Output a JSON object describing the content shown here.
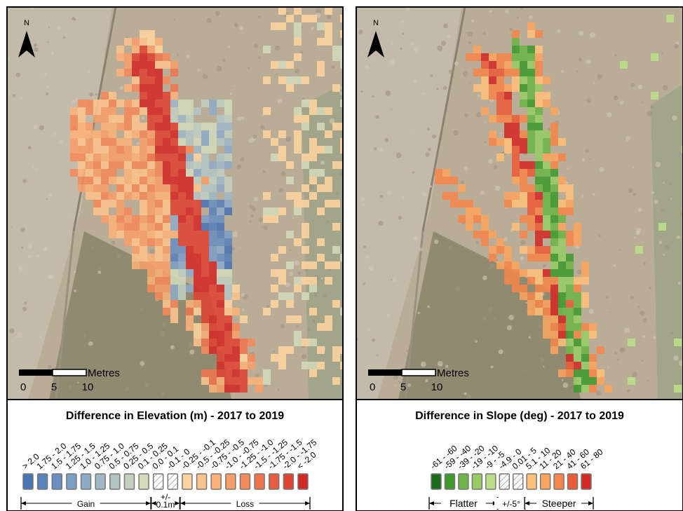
{
  "panels": [
    {
      "title": "Difference in Elevation (m) - 2017 to 2019",
      "north": "N",
      "scale": {
        "unit": "Metres",
        "ticks": [
          "0",
          "5",
          "10"
        ]
      },
      "legend": [
        {
          "label": "> 2.0",
          "color": "#4a73b3"
        },
        {
          "label": "1.75 - 2.0",
          "color": "#5a82ba"
        },
        {
          "label": "1.5 - 1.75",
          "color": "#6a8fc0"
        },
        {
          "label": "1.25 - 1.5",
          "color": "#7c9dc4"
        },
        {
          "label": "1.0 - 1.25",
          "color": "#8eabc6"
        },
        {
          "label": "0.75 - 1.0",
          "color": "#a0b8c6"
        },
        {
          "label": "0.5 - 0.75",
          "color": "#b2c4c4"
        },
        {
          "label": "0.25 - 0.5",
          "color": "#c2cfbf"
        },
        {
          "label": "0.1 - 0.25",
          "color": "#d2dabb"
        },
        {
          "label": "0.0 - 0.1",
          "color": "hatch"
        },
        {
          "label": "-0.1 - 0",
          "color": "hatch"
        },
        {
          "label": "-0.25 - -0.1",
          "color": "#fdd49e"
        },
        {
          "label": "-0.5 - -0.25",
          "color": "#fcc48c"
        },
        {
          "label": "-0.75 - -0.5",
          "color": "#fbb27a"
        },
        {
          "label": "-1.0 - -0.75",
          "color": "#f89e6a"
        },
        {
          "label": "-1.25 - -1.0",
          "color": "#f4895a"
        },
        {
          "label": "-1.5 - -1.25",
          "color": "#ef744c"
        },
        {
          "label": "-1.75 - -1.5",
          "color": "#e85c3e"
        },
        {
          "label": "-2.0 - -1.75",
          "color": "#df4432"
        },
        {
          "label": "< -2.0",
          "color": "#d42a26"
        }
      ],
      "groups": [
        {
          "lines": [
            "Gain"
          ],
          "from": 0,
          "to": 8
        },
        {
          "lines": [
            "+/-",
            "0.1m"
          ],
          "from": 9,
          "to": 10
        },
        {
          "lines": [
            "Loss"
          ],
          "from": 11,
          "to": 19
        }
      ]
    },
    {
      "title": "Difference in Slope (deg) - 2017 to 2019",
      "north": "N",
      "scale": {
        "unit": "Metres",
        "ticks": [
          "0",
          "5",
          "10"
        ]
      },
      "legend": [
        {
          "label": "-61 - -60",
          "color": "#1a6b1a"
        },
        {
          "label": "-59 - -40",
          "color": "#3f9a2e"
        },
        {
          "label": "-39 - -20",
          "color": "#6cb548"
        },
        {
          "label": "-19 - -10",
          "color": "#97cc66"
        },
        {
          "label": "-9 - -5",
          "color": "#bcdf8a"
        },
        {
          "label": "-4.9 - 0",
          "color": "hatch"
        },
        {
          "label": "0.01 - 5",
          "color": "hatch"
        },
        {
          "label": "5.1 - 10",
          "color": "#fdc07a"
        },
        {
          "label": "11 - 20",
          "color": "#fba45e"
        },
        {
          "label": "21 - 40",
          "color": "#f5854a"
        },
        {
          "label": "41 - 60",
          "color": "#ea5c38"
        },
        {
          "label": "61 - 80",
          "color": "#d42a26"
        }
      ],
      "groups": [
        {
          "lines": [
            "Flatter"
          ],
          "from": 0,
          "to": 4
        },
        {
          "lines": [
            "+/-5°"
          ],
          "from": 5,
          "to": 6
        },
        {
          "lines": [
            "Steeper"
          ],
          "from": 7,
          "to": 11
        }
      ]
    }
  ]
}
